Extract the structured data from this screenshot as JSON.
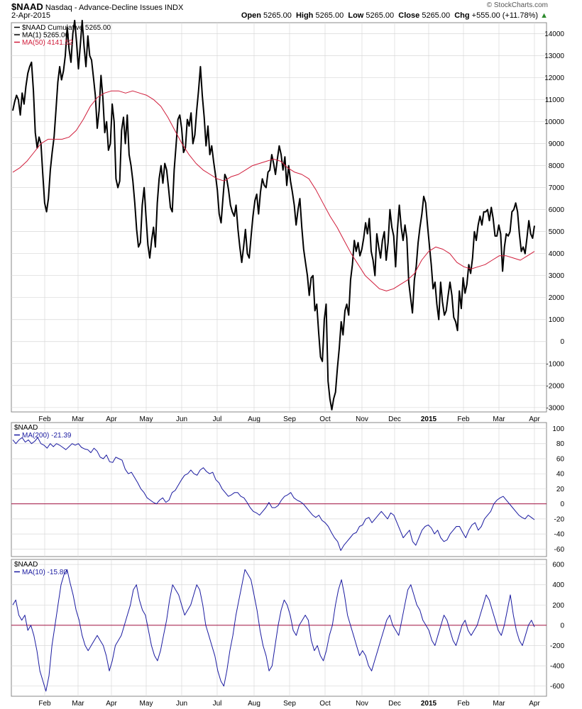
{
  "header": {
    "symbol": "$NAAD",
    "name": "Nasdaq - Advance-Decline Issues",
    "exchange": "INDX",
    "date": "2-Apr-2015",
    "open_label": "Open",
    "open": "5265.00",
    "high_label": "High",
    "high": "5265.00",
    "low_label": "Low",
    "low": "5265.00",
    "close_label": "Close",
    "close": "5265.00",
    "chg_label": "Chg",
    "chg": "+555.00 (+11.78%)",
    "credit": "© StockCharts.com",
    "arrow_color": "#2e8b2e"
  },
  "colors": {
    "price": "#000000",
    "ma50": "#d01c3a",
    "osc": "#1a1aa0",
    "zero": "#a01040",
    "grid": "#d8d8d8"
  },
  "chart_data": [
    {
      "type": "line",
      "panel": "main",
      "legend": [
        {
          "label": "$NAAD Cumulative 5265.00",
          "color": "#000000"
        },
        {
          "label": "MA(1) 5265.00",
          "color": "#000000"
        },
        {
          "label": "MA(50) 4141.52",
          "color": "#d01c3a"
        }
      ],
      "x_ticks": [
        "Feb",
        "Mar",
        "Apr",
        "May",
        "Jun",
        "Jul",
        "Aug",
        "Sep",
        "Oct",
        "Nov",
        "Dec",
        "2015",
        "Feb",
        "Mar",
        "Apr"
      ],
      "y_ticks": [
        "14000",
        "13000",
        "12000",
        "11000",
        "10000",
        "9000",
        "8000",
        "7000",
        "6000",
        "5000",
        "4000",
        "3000",
        "2000",
        "1000",
        "0",
        "-1000",
        "-2000",
        "-3000"
      ],
      "ylim": [
        -3200,
        14500
      ],
      "series": [
        {
          "name": "$NAAD Cumulative",
          "values": [
            10500,
            10900,
            11200,
            11000,
            10300,
            11300,
            10800,
            11600,
            12200,
            12500,
            12700,
            11400,
            9500,
            8800,
            9300,
            9000,
            7600,
            6300,
            5900,
            6500,
            7800,
            8600,
            9300,
            10500,
            11800,
            12500,
            11900,
            12300,
            13000,
            14300,
            13300,
            12700,
            14000,
            14600,
            13600,
            12400,
            13500,
            14600,
            13400,
            12500,
            13900,
            13000,
            12800,
            12000,
            11200,
            9700,
            10500,
            12100,
            11100,
            9500,
            10000,
            8700,
            9000,
            10800,
            10000,
            7400,
            7000,
            7300,
            9600,
            10200,
            9000,
            10300,
            8500,
            8000,
            7300,
            6300,
            5100,
            4300,
            4500,
            6200,
            7000,
            5700,
            4400,
            3800,
            4600,
            5200,
            4300,
            6300,
            7400,
            8000,
            7200,
            8100,
            7800,
            7000,
            6100,
            5900,
            7800,
            8900,
            10100,
            10300,
            9700,
            8600,
            8800,
            10100,
            9800,
            10400,
            9000,
            9400,
            10500,
            11400,
            12500,
            11200,
            10200,
            8900,
            9800,
            8500,
            8900,
            8200,
            7600,
            6900,
            5800,
            5400,
            6500,
            7600,
            7400,
            6900,
            6200,
            5900,
            5700,
            6200,
            5100,
            4300,
            3600,
            4300,
            5100,
            4000,
            3800,
            4800,
            5700,
            6400,
            6700,
            5800,
            6800,
            7400,
            7100,
            7000,
            7700,
            7800,
            8500,
            8100,
            7600,
            8300,
            8900,
            8500,
            7800,
            8400,
            7100,
            8000,
            7300,
            6800,
            6200,
            5300,
            6000,
            6500,
            5200,
            4200,
            3600,
            3000,
            2100,
            2900,
            3000,
            1400,
            1700,
            400,
            -700,
            -900,
            1000,
            1700,
            -1800,
            -2600,
            -3100,
            -2600,
            -2300,
            -1200,
            -300,
            900,
            300,
            1400,
            1700,
            1200,
            2800,
            3500,
            4600,
            4100,
            4500,
            3900,
            4200,
            4700,
            5400,
            4900,
            5600,
            4100,
            3700,
            3000,
            4900,
            4300,
            3800,
            4600,
            5000,
            3700,
            4500,
            6000,
            5200,
            4800,
            3400,
            5100,
            6200,
            5200,
            4600,
            5300,
            4700,
            2700,
            2000,
            1300,
            2800,
            3400,
            4500,
            5200,
            5800,
            6600,
            6300,
            5300,
            4400,
            3500,
            2400,
            2700,
            1700,
            1000,
            2700,
            1800,
            1200,
            1400,
            2100,
            2700,
            2100,
            1100,
            900,
            500,
            2300,
            1500,
            2900,
            2200,
            2600,
            3500,
            3100,
            3800,
            5000,
            4600,
            5300,
            5700,
            5300,
            5900,
            5900,
            6000,
            5500,
            6100,
            5600,
            4800,
            4800,
            5300,
            4900,
            3200,
            4300,
            4900,
            4800,
            5000,
            5900,
            6000,
            6300,
            5900,
            4900,
            4100,
            4300,
            4000,
            4700,
            5500,
            4900,
            4700,
            5265
          ]
        },
        {
          "name": "MA(50)",
          "values": [
            7700,
            7900,
            8200,
            8600,
            9000,
            9200,
            9200,
            9200,
            9300,
            9600,
            10100,
            10700,
            11100,
            11300,
            11400,
            11400,
            11300,
            11400,
            11300,
            11200,
            11000,
            10700,
            10200,
            9600,
            9000,
            8500,
            8100,
            7800,
            7600,
            7400,
            7300,
            7500,
            7600,
            7800,
            8000,
            8100,
            8200,
            8300,
            8200,
            7900,
            7700,
            7600,
            7400,
            6900,
            6300,
            5700,
            5200,
            4600,
            4000,
            3500,
            3000,
            2700,
            2400,
            2300,
            2400,
            2600,
            2800,
            3100,
            3700,
            4100,
            4300,
            4200,
            4000,
            3600,
            3400,
            3300,
            3400,
            3500,
            3700,
            3900,
            3900,
            3800,
            3700,
            3900,
            4100
          ]
        }
      ]
    },
    {
      "type": "line",
      "panel": "osc1",
      "legend_title": "$NAAD",
      "legend": [
        {
          "label": "MA(200) -21.39",
          "color": "#1a1aa0"
        }
      ],
      "y_ticks": [
        "100",
        "80",
        "60",
        "40",
        "20",
        "0",
        "-20",
        "-40",
        "-60"
      ],
      "ylim": [
        -70,
        108
      ],
      "series": [
        {
          "name": "MA(200)",
          "values": [
            85,
            80,
            85,
            88,
            82,
            85,
            80,
            83,
            88,
            80,
            78,
            74,
            80,
            76,
            80,
            78,
            75,
            72,
            76,
            80,
            78,
            80,
            75,
            73,
            72,
            68,
            74,
            70,
            62,
            60,
            65,
            56,
            55,
            62,
            60,
            58,
            46,
            40,
            42,
            35,
            28,
            20,
            15,
            8,
            5,
            2,
            0,
            5,
            8,
            2,
            5,
            15,
            18,
            25,
            32,
            38,
            40,
            45,
            40,
            38,
            45,
            48,
            43,
            40,
            42,
            32,
            28,
            20,
            15,
            10,
            12,
            15,
            15,
            10,
            8,
            2,
            -5,
            -10,
            -12,
            -15,
            -10,
            -5,
            2,
            -5,
            -5,
            -2,
            5,
            10,
            12,
            15,
            8,
            5,
            3,
            0,
            -5,
            -10,
            -15,
            -18,
            -15,
            -22,
            -25,
            -30,
            -38,
            -45,
            -50,
            -62,
            -55,
            -50,
            -45,
            -40,
            -38,
            -30,
            -28,
            -20,
            -18,
            -25,
            -20,
            -15,
            -10,
            -15,
            -20,
            -12,
            -15,
            -25,
            -35,
            -45,
            -40,
            -35,
            -50,
            -55,
            -45,
            -35,
            -30,
            -28,
            -32,
            -40,
            -35,
            -45,
            -50,
            -48,
            -40,
            -35,
            -30,
            -30,
            -38,
            -45,
            -35,
            -28,
            -25,
            -35,
            -30,
            -20,
            -15,
            -10,
            0,
            5,
            8,
            10,
            5,
            0,
            -5,
            -10,
            -15,
            -18,
            -20,
            -15,
            -18,
            -21
          ]
        }
      ]
    },
    {
      "type": "line",
      "panel": "osc2",
      "legend_title": "$NAAD",
      "legend": [
        {
          "label": "MA(10) -15.80",
          "color": "#1a1aa0"
        }
      ],
      "y_ticks": [
        "600",
        "400",
        "200",
        "0",
        "-200",
        "-400",
        "-600"
      ],
      "ylim": [
        -700,
        650
      ],
      "series": [
        {
          "name": "MA(10)",
          "values": [
            200,
            250,
            100,
            50,
            100,
            -50,
            0,
            -100,
            -250,
            -450,
            -550,
            -650,
            -500,
            -200,
            0,
            200,
            400,
            500,
            550,
            420,
            300,
            150,
            50,
            -100,
            -200,
            -250,
            -200,
            -150,
            -100,
            -150,
            -200,
            -300,
            -450,
            -350,
            -200,
            -150,
            -100,
            0,
            100,
            200,
            350,
            400,
            250,
            150,
            100,
            -50,
            -200,
            -300,
            -350,
            -250,
            -100,
            50,
            250,
            400,
            350,
            300,
            200,
            100,
            150,
            200,
            300,
            400,
            350,
            200,
            0,
            -100,
            -200,
            -300,
            -450,
            -550,
            -600,
            -450,
            -250,
            -100,
            100,
            250,
            400,
            550,
            500,
            450,
            300,
            150,
            -50,
            -200,
            -300,
            -450,
            -400,
            -200,
            0,
            150,
            250,
            200,
            100,
            -50,
            -100,
            0,
            50,
            100,
            50,
            -150,
            -250,
            -200,
            -300,
            -350,
            -250,
            -100,
            0,
            200,
            350,
            450,
            300,
            100,
            0,
            -100,
            -200,
            -300,
            -250,
            -300,
            -400,
            -450,
            -350,
            -250,
            -150,
            -50,
            50,
            100,
            0,
            -50,
            -100,
            50,
            200,
            350,
            400,
            300,
            200,
            150,
            50,
            0,
            -50,
            -150,
            -200,
            -100,
            0,
            100,
            50,
            -50,
            -150,
            -200,
            -100,
            0,
            50,
            -50,
            -100,
            -50,
            0,
            100,
            200,
            300,
            250,
            150,
            50,
            -50,
            -100,
            0,
            150,
            300,
            100,
            -50,
            -150,
            -200,
            -100,
            0,
            50,
            -16
          ]
        }
      ]
    }
  ]
}
